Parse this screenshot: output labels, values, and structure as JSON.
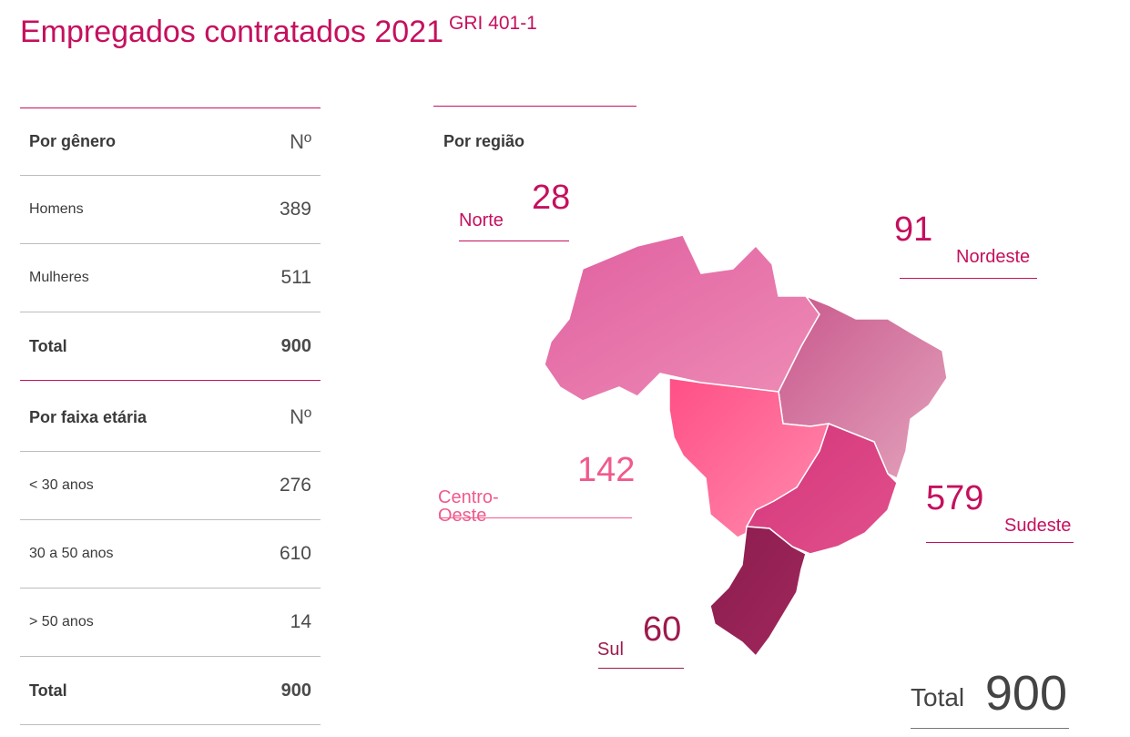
{
  "header": {
    "title": "Empregados contratados 2021",
    "gri": "GRI 401-1"
  },
  "genero": {
    "heading": "Por gênero",
    "col": "Nº",
    "rows": [
      {
        "label": "Homens",
        "value": "389"
      },
      {
        "label": "Mulheres",
        "value": "511"
      }
    ],
    "total_label": "Total",
    "total_value": "900"
  },
  "faixa": {
    "heading": "Por faixa etária",
    "col": "Nº",
    "rows": [
      {
        "label": "< 30 anos",
        "value": "276"
      },
      {
        "label": "30 a 50 anos",
        "value": "610"
      },
      {
        "label": "> 50 anos",
        "value": "14"
      }
    ],
    "total_label": "Total",
    "total_value": "900"
  },
  "regiao": {
    "heading": "Por região",
    "items": [
      {
        "name": "Norte",
        "value": "28",
        "color": "#c5105e"
      },
      {
        "name": "Nordeste",
        "value": "91",
        "color": "#c5105e"
      },
      {
        "name": "Centro-Oeste",
        "value": "142",
        "color": "#f05a8c"
      },
      {
        "name": "Sudeste",
        "value": "579",
        "color": "#c5105e"
      },
      {
        "name": "Sul",
        "value": "60",
        "color": "#9e1a4d"
      }
    ],
    "total_label": "Total",
    "total_value": "900"
  },
  "colors": {
    "accent": "#c5105e",
    "norte": "#e873a8",
    "nordeste": "#d77aa2",
    "centro_oeste": "#ff5f8f",
    "sudeste": "#dd3e80",
    "sul": "#922053"
  }
}
